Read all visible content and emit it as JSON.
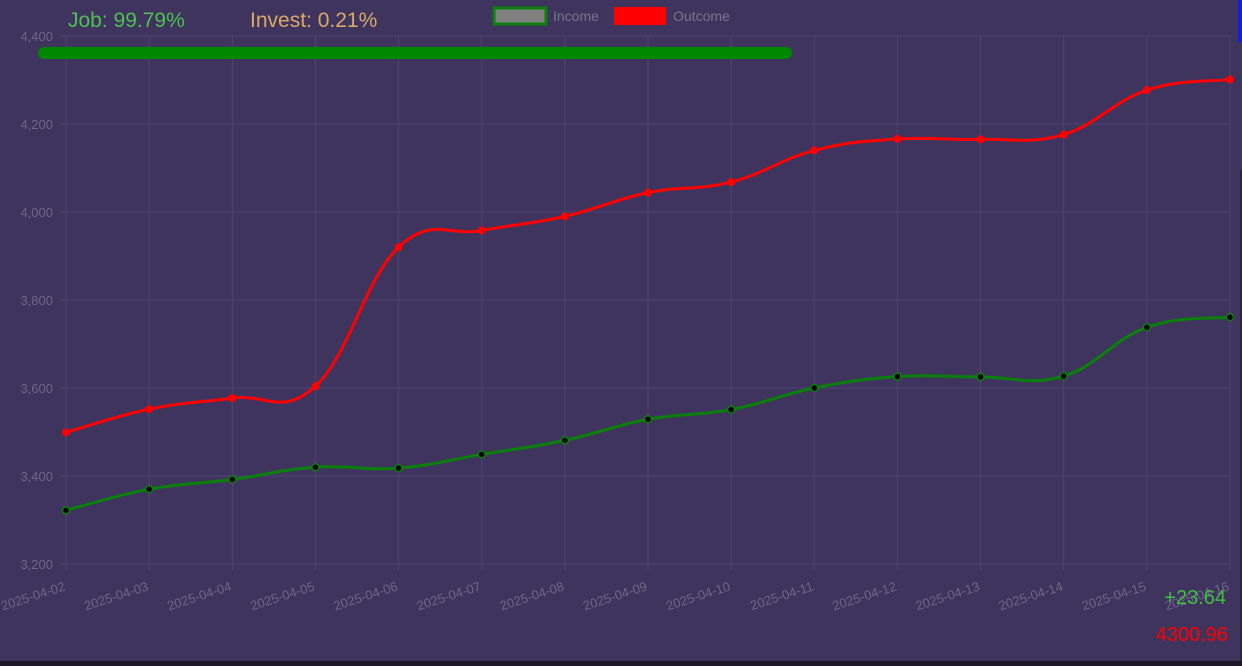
{
  "header": {
    "job_label": "Job: 99.79%",
    "invest_label": "Invest: 0.21%",
    "job_share_fraction": 0.9979
  },
  "footer": {
    "income_delta": "+23.64",
    "outcome_total": "4300.96"
  },
  "colors": {
    "background": "#3f345e",
    "grid": "#4f4572",
    "tick_text": "#6e6689",
    "legend_text": "#7a7390",
    "income": "#0a7f0a",
    "income_point": "#000000",
    "outcome": "#ff0000",
    "job_text": "#4fbf4f",
    "invest_text": "#d9a86a",
    "progress": "#008800"
  },
  "chart_data": {
    "type": "line",
    "title": "",
    "xlabel": "",
    "ylabel": "",
    "categories": [
      "2025-04-02",
      "2025-04-03",
      "2025-04-04",
      "2025-04-05",
      "2025-04-06",
      "2025-04-07",
      "2025-04-08",
      "2025-04-09",
      "2025-04-10",
      "2025-04-11",
      "2025-04-12",
      "2025-04-13",
      "2025-04-14",
      "2025-04-15",
      "2025-04-16"
    ],
    "ylim": [
      3200,
      4400
    ],
    "yticks": [
      3200,
      3400,
      3600,
      3800,
      4000,
      4200,
      4400
    ],
    "ytick_labels": [
      "3,200",
      "3,400",
      "3,600",
      "3,800",
      "4,000",
      "4,200",
      "4,400"
    ],
    "grid": true,
    "legend_position": "top-center",
    "series": [
      {
        "name": "Income",
        "color": "#0a7f0a",
        "values": [
          3322,
          3370,
          3392,
          3420,
          3418,
          3449,
          3481,
          3529,
          3551,
          3600,
          3626,
          3625,
          3627,
          3738,
          3761
        ]
      },
      {
        "name": "Outcome",
        "color": "#ff0000",
        "values": [
          3499,
          3552,
          3577,
          3604,
          3920,
          3958,
          3990,
          4044,
          4068,
          4140,
          4166,
          4165,
          4176,
          4277,
          4301
        ]
      }
    ]
  }
}
